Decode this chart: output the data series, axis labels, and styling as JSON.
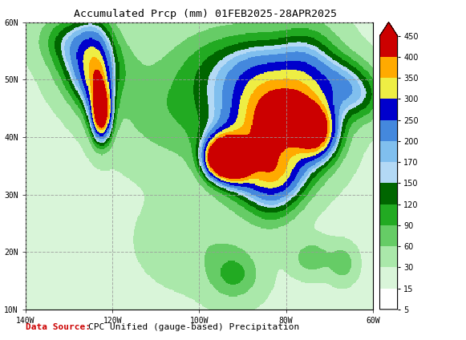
{
  "title": "Accumulated Prcp (mm) 01FEB2025-28APR2025",
  "title_fontsize": 9.5,
  "data_source_label": "Data Source:",
  "data_source_text": "CPC Unified (gauge-based) Precipitation",
  "data_source_color_label": "#cc0000",
  "data_source_color_text": "#000000",
  "data_source_fontsize": 8,
  "extent_lon": [
    -140,
    -60
  ],
  "extent_lat": [
    10,
    60
  ],
  "colorbar_levels": [
    5,
    15,
    30,
    60,
    90,
    120,
    150,
    170,
    200,
    250,
    300,
    350,
    400,
    450
  ],
  "colorbar_colors": [
    "#ffffff",
    "#d9f5d9",
    "#aae8aa",
    "#66cc66",
    "#22aa22",
    "#006600",
    "#b3d9f5",
    "#80bfee",
    "#4488dd",
    "#0000cc",
    "#eeee44",
    "#ffaa00",
    "#ff5500",
    "#cc0000"
  ],
  "colorbar_tick_labels": [
    "5",
    "15",
    "30",
    "60",
    "90",
    "120",
    "150",
    "170",
    "200",
    "250",
    "300",
    "350",
    "400",
    "450"
  ],
  "background_color": "#ffffff",
  "gridline_color": "#999999",
  "gridline_style": "--",
  "gridline_alpha": 0.8,
  "xlabel_ticks": [
    -140,
    -120,
    -100,
    -80,
    -60
  ],
  "xlabel_labels": [
    "140W",
    "120W",
    "100W",
    "80W",
    "60W"
  ],
  "ylabel_ticks": [
    10,
    20,
    30,
    40,
    50,
    60
  ],
  "ylabel_labels": [
    "10N",
    "20N",
    "30N",
    "40N",
    "50N",
    "60N"
  ],
  "map_image_url": "https://www.cpc.ncep.noaa.gov/products/unified_prcp/precip/totals/feb2025.gif"
}
